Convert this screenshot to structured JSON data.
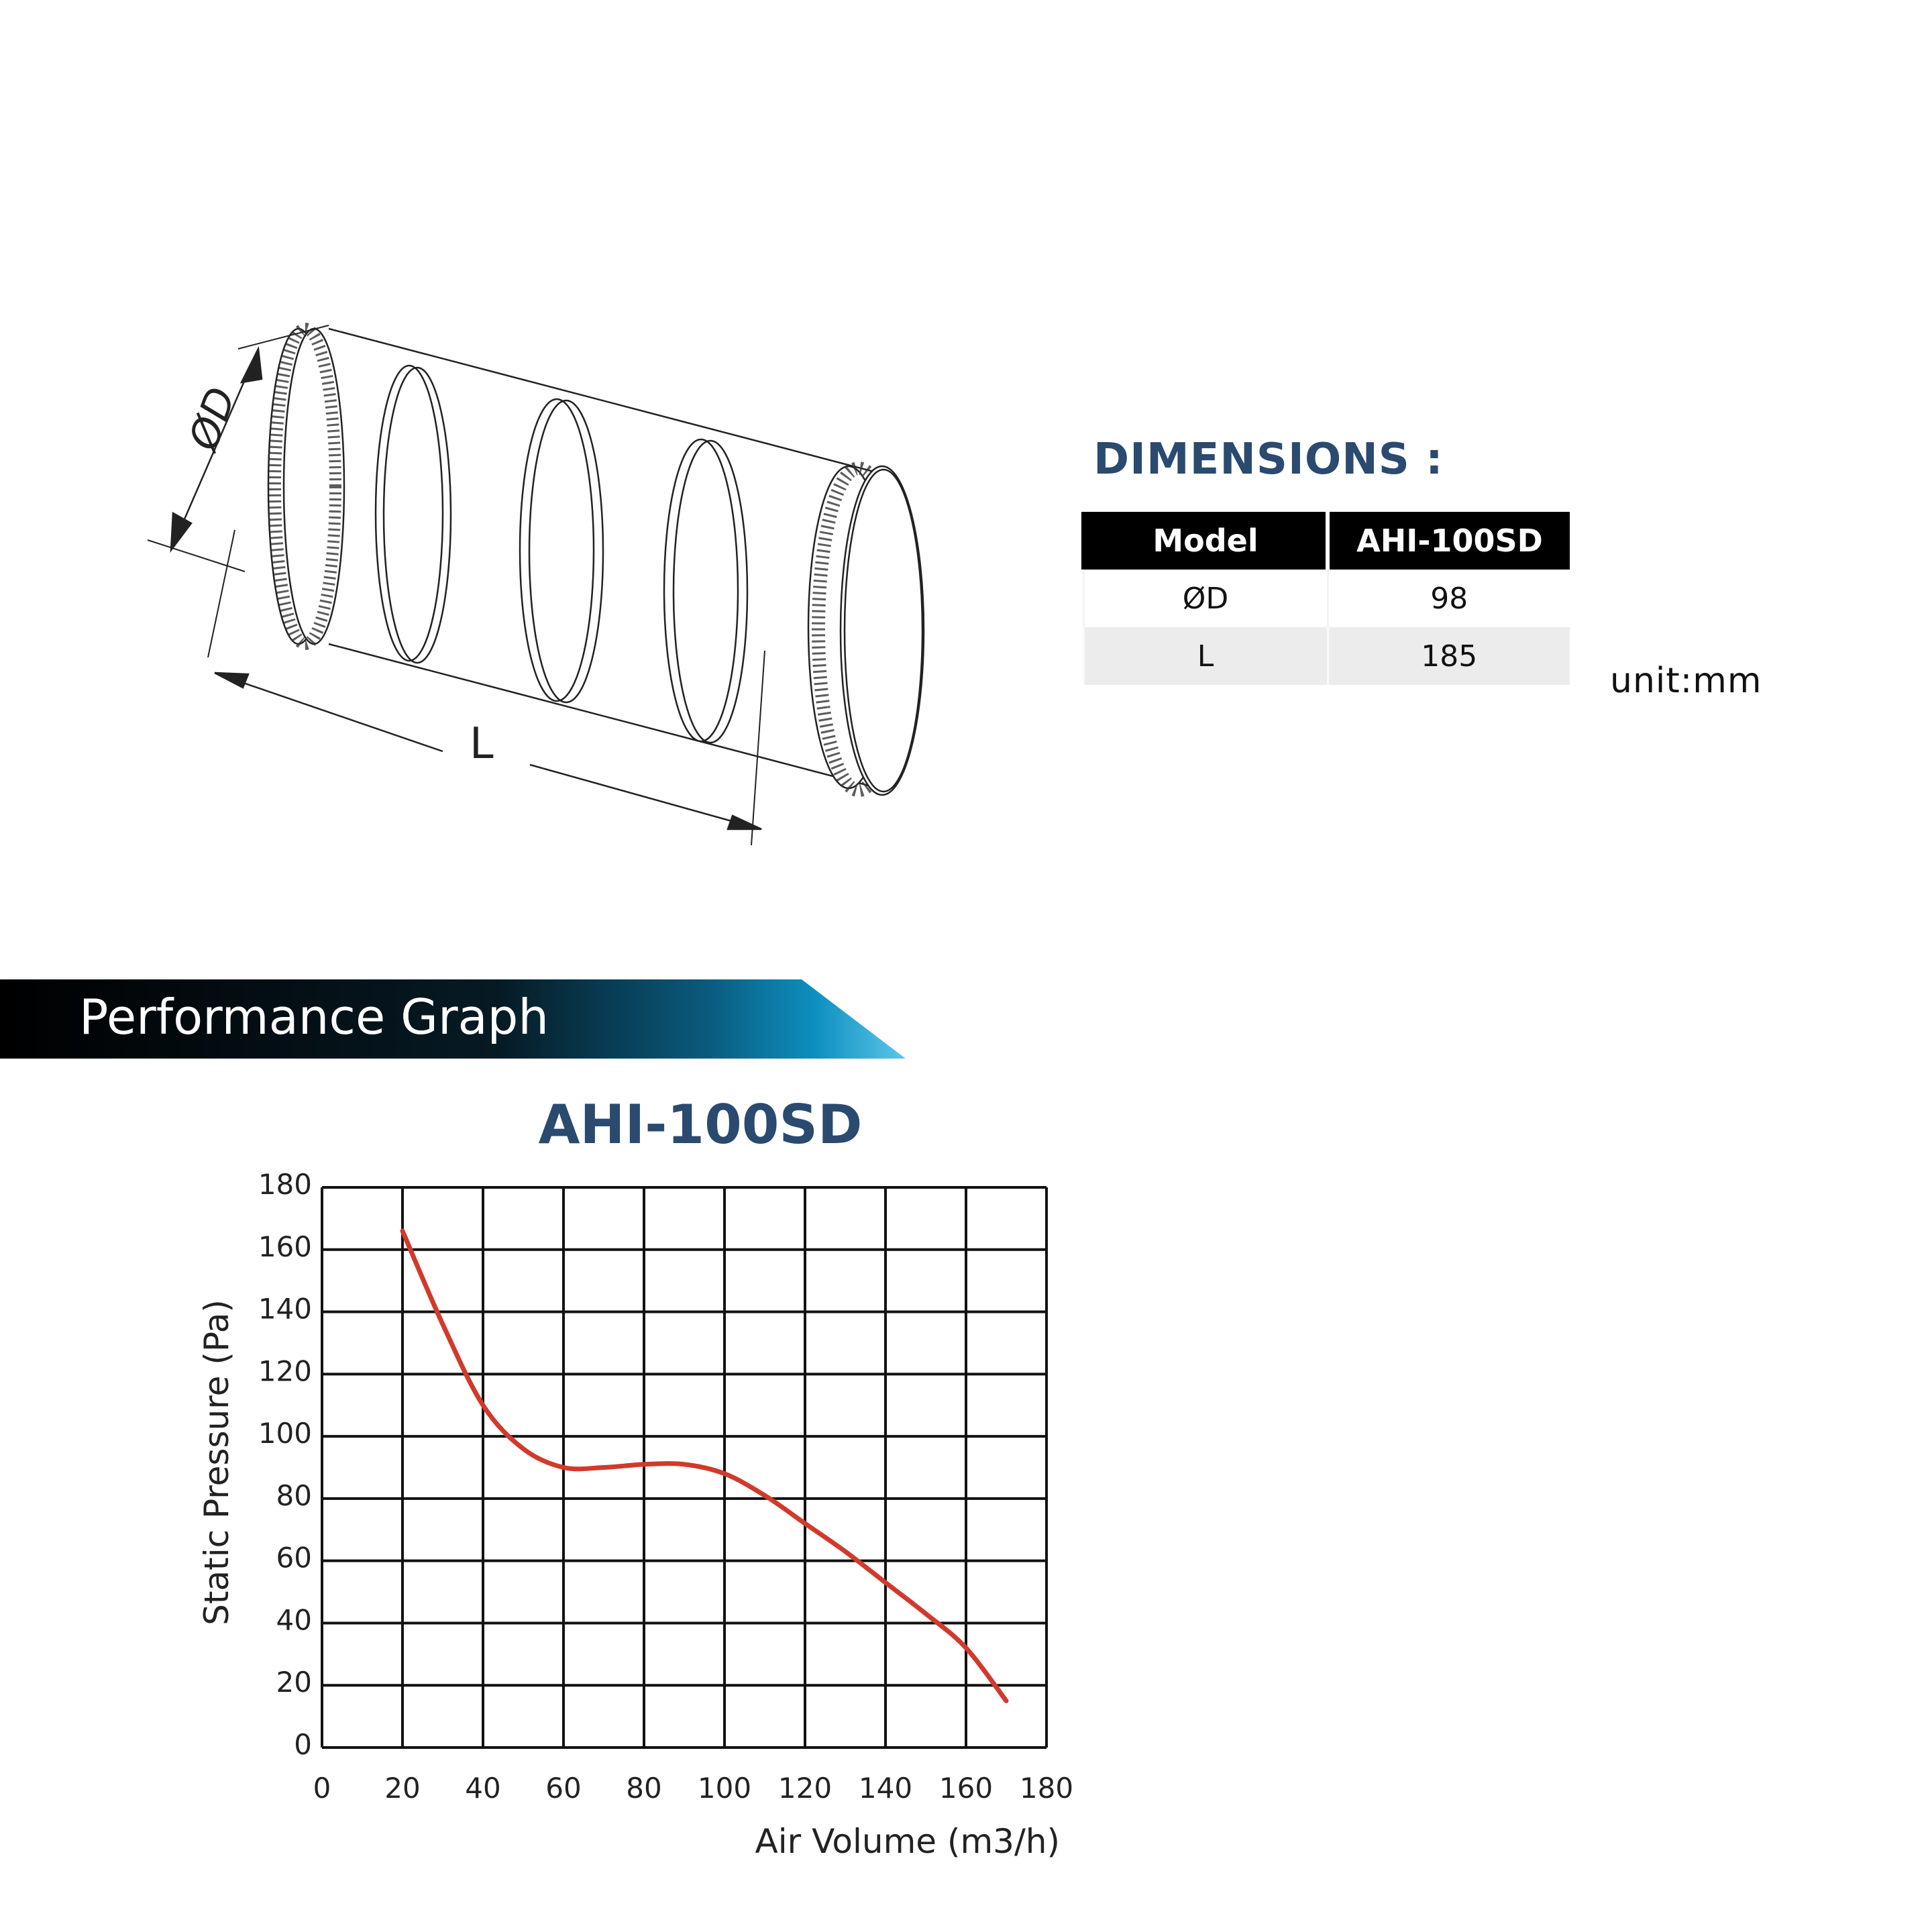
{
  "dimensions": {
    "title": "DIMENSIONS :",
    "headers": [
      "Model",
      "AHI-100SD"
    ],
    "rows": [
      {
        "param": "ØD",
        "value": "98"
      },
      {
        "param": "L",
        "value": "185"
      }
    ],
    "unit": "unit:mm"
  },
  "drawing": {
    "diameter_label": "ØD",
    "length_label": "L"
  },
  "banner": {
    "title": "Performance Graph",
    "gradient_colors": [
      "#000000",
      "#0a3d55",
      "#0e8fc0",
      "#5cc6ea"
    ]
  },
  "chart_data": {
    "type": "line",
    "title": "AHI-100SD",
    "xlabel": "Air Volume (m3/h)",
    "ylabel": "Static Pressure (Pa)",
    "xlim": [
      0,
      180
    ],
    "ylim": [
      0,
      180
    ],
    "xticks": [
      0,
      20,
      40,
      60,
      80,
      100,
      120,
      140,
      160,
      180
    ],
    "yticks": [
      0,
      20,
      40,
      60,
      80,
      100,
      120,
      140,
      160,
      180
    ],
    "grid": true,
    "series": [
      {
        "color": "#d13a2b",
        "x": [
          20,
          30,
          40,
          50,
          60,
          70,
          80,
          90,
          100,
          110,
          120,
          130,
          140,
          150,
          160,
          170
        ],
        "y": [
          166,
          136,
          110,
          96,
          90,
          90,
          91,
          91,
          88,
          81,
          72,
          63,
          53,
          43,
          32,
          15
        ]
      }
    ]
  }
}
